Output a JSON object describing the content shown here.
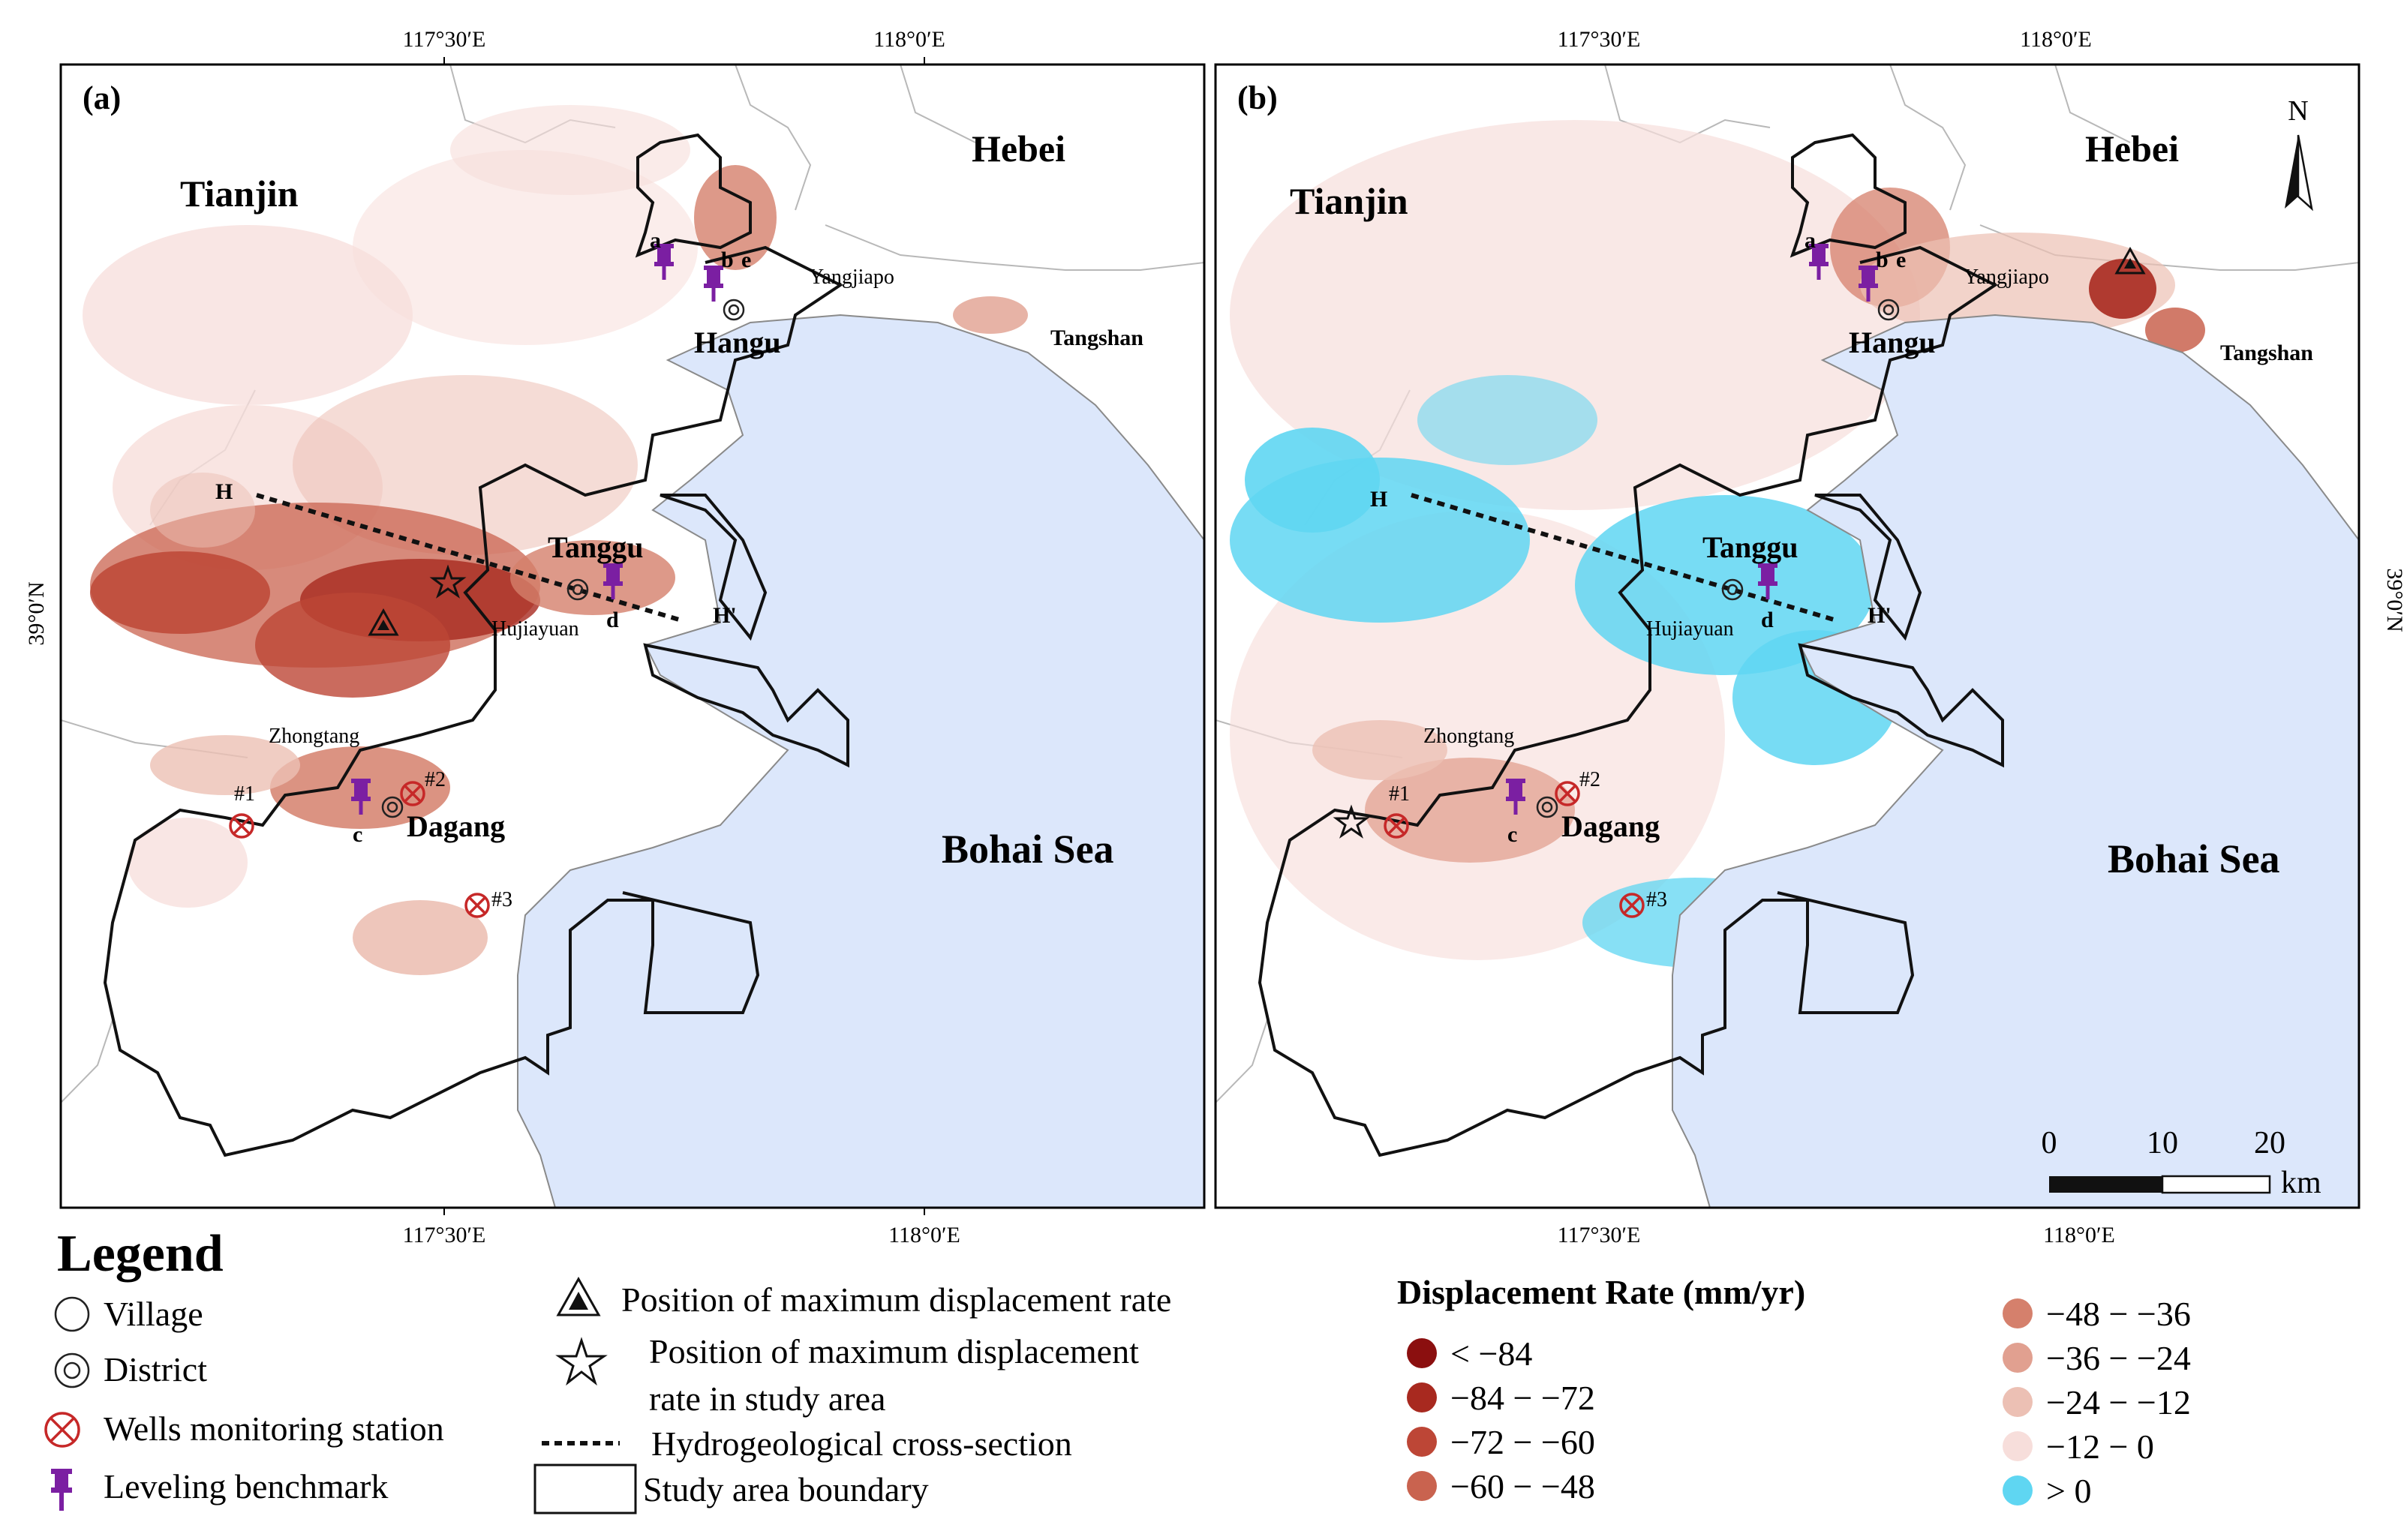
{
  "panels": [
    {
      "id": "a",
      "tag": "(a)",
      "regions": {
        "tianjin": "Tianjin",
        "hebei": "Hebei",
        "sea": "Bohai Sea"
      },
      "places": {
        "hangu": "Hangu",
        "tanggu": "Tanggu",
        "dagang": "Dagang",
        "yangjiapo": "Yangjiapo",
        "tangshan": "Tangshan",
        "hujiayuan": "Hujiayuan",
        "zhongtang": "Zhongtang"
      },
      "section": {
        "start": "H",
        "end": "H'"
      },
      "benchmarks": [
        "a",
        "b",
        "c",
        "d",
        "e"
      ],
      "wells": [
        "#1",
        "#2",
        "#3"
      ],
      "lon_ticks": [
        "117°30′E",
        "118°0′E"
      ],
      "lat_tick": "39°0′N"
    },
    {
      "id": "b",
      "tag": "(b)",
      "regions": {
        "tianjin": "Tianjin",
        "hebei": "Hebei",
        "sea": "Bohai Sea"
      },
      "places": {
        "hangu": "Hangu",
        "tanggu": "Tanggu",
        "dagang": "Dagang",
        "yangjiapo": "Yangjiapo",
        "tangshan": "Tangshan",
        "hujiayuan": "Hujiayuan",
        "zhongtang": "Zhongtang"
      },
      "section": {
        "start": "H",
        "end": "H'"
      },
      "benchmarks": [
        "a",
        "b",
        "c",
        "d",
        "e"
      ],
      "wells": [
        "#1",
        "#2",
        "#3"
      ],
      "lon_ticks": [
        "117°30′E",
        "118°0′E"
      ],
      "lat_tick": "39°0′N",
      "north": "N",
      "scale": {
        "ticks": [
          "0",
          "10",
          "20"
        ],
        "unit": "km"
      }
    }
  ],
  "legend": {
    "title": "Legend",
    "items": {
      "village": "Village",
      "district": "District",
      "wells": "Wells monitoring station",
      "leveling": "Leveling benchmark",
      "max_rate": "Position of maximum displacement rate",
      "max_rate_study_1": "Position of maximum displacement",
      "max_rate_study_2": "rate in study area",
      "cross_section": "Hydrogeological cross-section",
      "boundary": "Study area boundary"
    },
    "rate_title": "Displacement Rate (mm/yr)",
    "rate_classes": [
      {
        "label": "< −84",
        "color": "#8b0f0f"
      },
      {
        "label": "−84 − −72",
        "color": "#a8291f"
      },
      {
        "label": "−72 − −60",
        "color": "#bd4636"
      },
      {
        "label": "−60 − −48",
        "color": "#c9634f"
      },
      {
        "label": "−48 − −36",
        "color": "#d5806c"
      },
      {
        "label": "−36 − −24",
        "color": "#e1a090"
      },
      {
        "label": "−24 − −12",
        "color": "#ecc0b4"
      },
      {
        "label": "−12 − 0",
        "color": "#f7dedb"
      },
      {
        "label": "> 0",
        "color": "#5fd6f2"
      }
    ],
    "colors": {
      "sea": "#dce7fb",
      "well": "#c62828",
      "benchmark": "#7b1fa2"
    }
  }
}
